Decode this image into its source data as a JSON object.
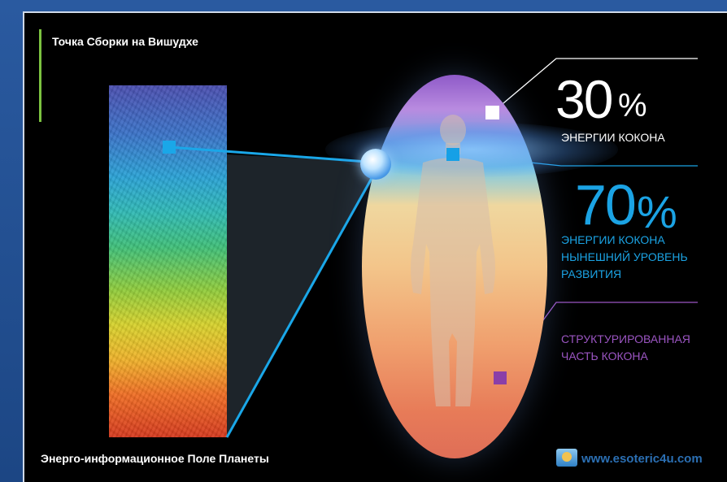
{
  "titles": {
    "top": "Точка Сборки на  Вишудхе",
    "bottom": "Энерго-информационное Поле Планеты"
  },
  "watermark": "www.esoteric4u.com",
  "callouts": {
    "top": {
      "percent": "30",
      "sign": "%",
      "label": "ЭНЕРГИИ КОКОНА"
    },
    "middle": {
      "percent": "70",
      "sign": "%",
      "label_lines": [
        "ЭНЕРГИИ КОКОНА",
        "НЫНЕШНИЙ УРОВЕНЬ",
        "РАЗВИТИЯ"
      ]
    },
    "bottom": {
      "label_lines": [
        "СТРУКТУРИРОВАННАЯ",
        "ЧАСТЬ КОКОНА"
      ]
    }
  },
  "colors": {
    "accent_green": "#7cc240",
    "accent_blue": "#1ba3e4",
    "accent_purple": "#9b55c2",
    "frame_blue": "#1f4a86"
  }
}
